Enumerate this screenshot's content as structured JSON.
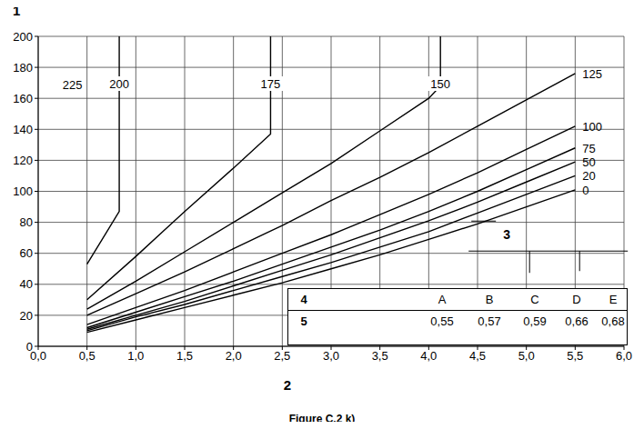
{
  "chart_data": {
    "type": "line",
    "title": "Figure C.2 k)",
    "x_label": "2",
    "y_label": "1",
    "xlim": [
      0,
      6
    ],
    "xticks": [
      {
        "value": 0,
        "label": "0,0"
      },
      {
        "value": 0.5,
        "label": "0,5"
      },
      {
        "value": 1,
        "label": "1,0"
      },
      {
        "value": 1.5,
        "label": "1,5"
      },
      {
        "value": 2,
        "label": "2,0"
      },
      {
        "value": 2.5,
        "label": "2,5"
      },
      {
        "value": 3,
        "label": "3,0"
      },
      {
        "value": 3.5,
        "label": "3,5"
      },
      {
        "value": 4,
        "label": "4,0"
      },
      {
        "value": 4.5,
        "label": "4,5"
      },
      {
        "value": 5,
        "label": "5,0"
      },
      {
        "value": 5.5,
        "label": "5,5"
      },
      {
        "value": 6,
        "label": "6,0"
      }
    ],
    "ylim": [
      0,
      200
    ],
    "yticks": [
      0,
      20,
      40,
      60,
      80,
      100,
      120,
      140,
      160,
      180,
      200
    ],
    "grid": true,
    "series": [
      {
        "name": "0",
        "color": "#000000",
        "x": [
          0.5,
          1,
          1.5,
          2,
          2.5,
          3,
          3.5,
          4,
          4.5,
          5,
          5.5
        ],
        "values": [
          9,
          17,
          25,
          33,
          41,
          50,
          59,
          69,
          79,
          90,
          101
        ]
      },
      {
        "name": "20",
        "color": "#000000",
        "x": [
          0.5,
          1,
          1.5,
          2,
          2.5,
          3,
          3.5,
          4,
          4.5,
          5,
          5.5
        ],
        "values": [
          10,
          19,
          27,
          36,
          45,
          54,
          64,
          74,
          86,
          98,
          110
        ]
      },
      {
        "name": "50",
        "color": "#000000",
        "x": [
          0.5,
          1,
          1.5,
          2,
          2.5,
          3,
          3.5,
          4,
          4.5,
          5,
          5.5
        ],
        "values": [
          11,
          20,
          29,
          39,
          49,
          59,
          70,
          81,
          93,
          106,
          119
        ]
      },
      {
        "name": "75",
        "color": "#000000",
        "x": [
          0.5,
          1,
          1.5,
          2,
          2.5,
          3,
          3.5,
          4,
          4.5,
          5,
          5.5
        ],
        "values": [
          12,
          22,
          32,
          42,
          53,
          64,
          75,
          87,
          100,
          114,
          128
        ]
      },
      {
        "name": "100",
        "color": "#000000",
        "x": [
          0.5,
          1,
          1.5,
          2,
          2.5,
          3,
          3.5,
          4,
          4.5,
          5,
          5.5
        ],
        "values": [
          14,
          25,
          36,
          48,
          60,
          72,
          85,
          98,
          112,
          127,
          142
        ]
      },
      {
        "name": "125",
        "color": "#000000",
        "x": [
          0.5,
          1,
          1.5,
          2,
          2.5,
          3,
          3.5,
          4,
          4.5,
          5,
          5.5
        ],
        "values": [
          20,
          34,
          48,
          63,
          78,
          94,
          109,
          125,
          142,
          159,
          176
        ]
      },
      {
        "name": "150",
        "color": "#000000",
        "x": [
          0.5,
          1,
          1.5,
          2,
          2.5,
          3,
          3.5,
          4,
          4.12,
          4.12
        ],
        "values": [
          24,
          42,
          61,
          80,
          99,
          118,
          139,
          160,
          168,
          200
        ]
      },
      {
        "name": "175",
        "color": "#000000",
        "x": [
          0.5,
          1,
          1.5,
          2,
          2.38,
          2.38
        ],
        "values": [
          30,
          58,
          87,
          115,
          137,
          200
        ]
      },
      {
        "name": "200",
        "color": "#000000",
        "x": [
          0.5,
          0.83,
          0.83
        ],
        "values": [
          53,
          87,
          200
        ]
      }
    ],
    "annotations": [
      {
        "text": "225",
        "x": 0.35,
        "y": 169
      }
    ],
    "key_label": {
      "text": "3",
      "x": 4.8,
      "y": 72
    },
    "table": {
      "rows": [
        [
          "4",
          "A",
          "B",
          "C",
          "D",
          "E"
        ],
        [
          "5",
          "0,55",
          "0,57",
          "0,59",
          "0,66",
          "0,68"
        ]
      ]
    }
  }
}
